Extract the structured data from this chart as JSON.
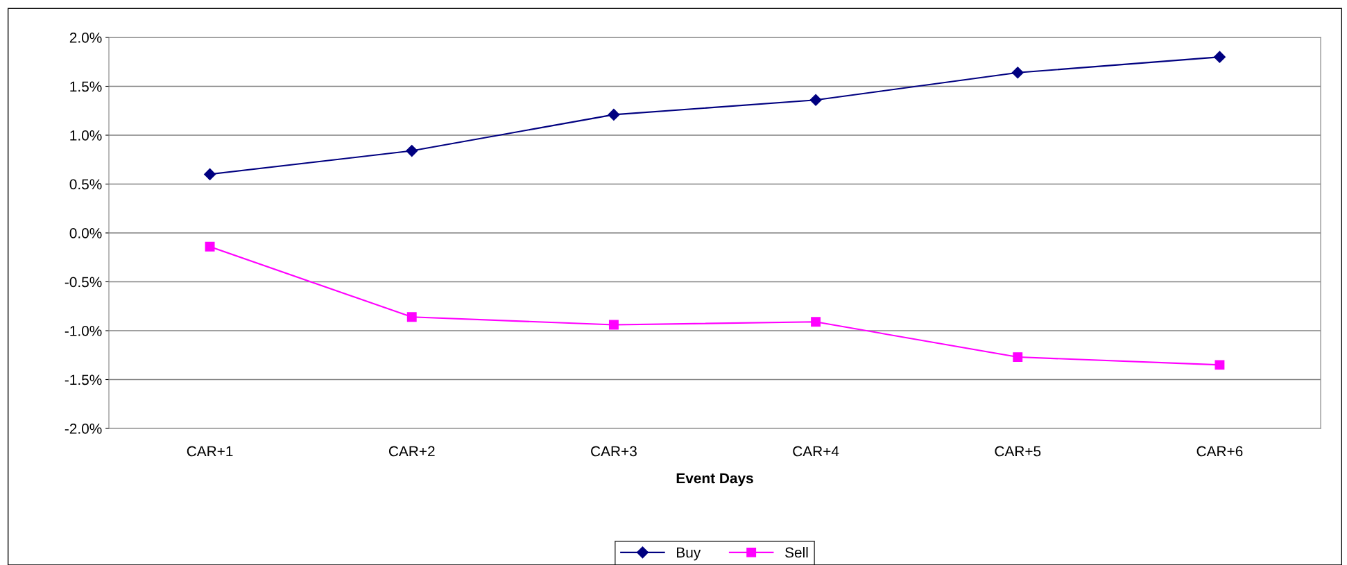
{
  "chart_data": {
    "type": "line",
    "xlabel": "Event Days",
    "categories": [
      "CAR+1",
      "CAR+2",
      "CAR+3",
      "CAR+4",
      "CAR+5",
      "CAR+6"
    ],
    "series": [
      {
        "name": "Buy",
        "color": "#000080",
        "marker": "diamond",
        "values": [
          0.6,
          0.84,
          1.21,
          1.36,
          1.64,
          1.8
        ]
      },
      {
        "name": "Sell",
        "color": "#ff00ff",
        "marker": "square",
        "values": [
          -0.14,
          -0.86,
          -0.94,
          -0.91,
          -1.27,
          -1.35
        ]
      }
    ],
    "ylim": [
      -2.0,
      2.0
    ],
    "yticks": [
      {
        "value": -2.0,
        "label": "-2.0%"
      },
      {
        "value": -1.5,
        "label": "-1.5%"
      },
      {
        "value": -1.0,
        "label": "-1.0%"
      },
      {
        "value": -0.5,
        "label": "-0.5%"
      },
      {
        "value": 0.0,
        "label": "0.0%"
      },
      {
        "value": 0.5,
        "label": "0.5%"
      },
      {
        "value": 1.0,
        "label": "1.0%"
      },
      {
        "value": 1.5,
        "label": "1.5%"
      },
      {
        "value": 2.0,
        "label": "2.0%"
      }
    ],
    "grid": "y",
    "legend": "bottom",
    "line_style": "solid"
  }
}
